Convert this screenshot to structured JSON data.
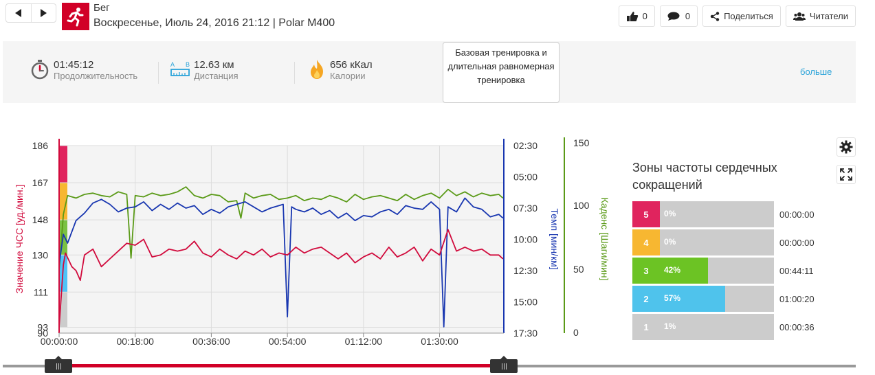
{
  "header": {
    "title": "Бег",
    "subtitle": "Воскресенье, Июль 24, 2016 21:12 | Polar M400",
    "like_count": "0",
    "comment_count": "0",
    "share_label": "Поделиться",
    "readers_label": "Читатели"
  },
  "stats": {
    "duration": {
      "value": "01:45:12",
      "label": "Продолжительность"
    },
    "distance": {
      "value": "12.63 км",
      "label": "Дистанция",
      "icon_a": "A",
      "icon_b": "B"
    },
    "calories": {
      "value": "656 кКал",
      "label": "Калории"
    },
    "training_type": "Базовая тренировка и длительная равномерная тренировка",
    "more_label": "больше"
  },
  "chart_data": {
    "type": "line",
    "x_ticks": [
      "00:00:00",
      "00:18:00",
      "00:36:00",
      "00:54:00",
      "01:12:00",
      "01:30:00"
    ],
    "xlim_minutes": [
      0,
      105.2
    ],
    "hr_axis": {
      "label": "Значение ЧСС [уд./мин.]",
      "ticks": [
        "186",
        "167",
        "148",
        "130",
        "111",
        "93",
        "90"
      ],
      "ylim": [
        90,
        186
      ]
    },
    "pace_axis": {
      "label": "Темп [мин/км]",
      "ticks": [
        "02:30",
        "05:00",
        "07:30",
        "10:00",
        "12:30",
        "15:00",
        "17:30"
      ],
      "ylim_minutes": [
        2.5,
        17.5
      ]
    },
    "cadence_axis": {
      "label": "Каденс [Шаги/мин]",
      "ticks": [
        "150",
        "100",
        "50",
        "0"
      ],
      "ylim": [
        0,
        150
      ]
    },
    "zone_bands": [
      {
        "zone": 5,
        "from": 167,
        "to": 186,
        "color": "#e0245e"
      },
      {
        "zone": 4,
        "from": 148,
        "to": 167,
        "color": "#f7b731"
      },
      {
        "zone": 3,
        "from": 130,
        "to": 148,
        "color": "#7ac143"
      },
      {
        "zone": 2,
        "from": 111,
        "to": 130,
        "color": "#4fc3f7"
      },
      {
        "zone": 1,
        "from": 93,
        "to": 111,
        "color": "#cccccc"
      }
    ],
    "series": [
      {
        "key": "heart-rate",
        "color": "#d10a3c",
        "x": [
          0,
          1,
          1.5,
          3,
          4,
          5,
          6,
          8,
          10,
          12,
          14,
          16,
          18,
          20,
          22,
          24,
          26,
          28,
          30,
          32,
          34,
          36,
          38,
          40,
          42,
          44,
          46,
          48,
          50,
          52,
          54,
          56,
          58,
          60,
          62,
          64,
          66,
          68,
          70,
          72,
          74,
          76,
          78,
          80,
          82,
          84,
          86,
          88,
          90,
          92,
          94,
          96,
          98,
          100,
          102,
          104,
          105
        ],
        "values": [
          93,
          125,
          131,
          124,
          122,
          117,
          130,
          133,
          124,
          128,
          132,
          136,
          135,
          138,
          129,
          130,
          133,
          132,
          133,
          137,
          131,
          129,
          133,
          130,
          128,
          132,
          130,
          133,
          129,
          131,
          130,
          134,
          131,
          133,
          134,
          131,
          128,
          131,
          126,
          129,
          131,
          128,
          134,
          129,
          131,
          134,
          127,
          133,
          130,
          143,
          132,
          134,
          132,
          133,
          130,
          130,
          128
        ]
      },
      {
        "key": "pace",
        "color": "#1836b0",
        "x": [
          0,
          1,
          2,
          4,
          6,
          8,
          10,
          12,
          14,
          16,
          18,
          20,
          22,
          24,
          26,
          28,
          30,
          32,
          34,
          36,
          38,
          40,
          42,
          44,
          46,
          48,
          50,
          52,
          53,
          54,
          55,
          56,
          58,
          60,
          62,
          64,
          66,
          68,
          70,
          72,
          74,
          76,
          78,
          80,
          82,
          84,
          86,
          88,
          90,
          91,
          92,
          94,
          96,
          98,
          100,
          102,
          104,
          105
        ],
        "values": [
          12.0,
          9.6,
          10.3,
          8.5,
          7.9,
          7.1,
          6.8,
          7.2,
          7.8,
          7.5,
          7.4,
          7.0,
          7.7,
          7.2,
          7.6,
          7.1,
          7.5,
          7.3,
          8.0,
          7.6,
          7.9,
          7.4,
          7.2,
          7.0,
          7.4,
          7.8,
          7.5,
          7.3,
          7.2,
          16.2,
          7.4,
          7.6,
          7.8,
          7.5,
          8.0,
          7.7,
          8.3,
          7.9,
          8.5,
          8.1,
          8.2,
          7.8,
          7.6,
          8.0,
          7.3,
          7.5,
          7.6,
          7.0,
          7.6,
          17.0,
          7.4,
          7.8,
          6.7,
          7.4,
          7.6,
          8.2,
          8.0,
          8.3
        ]
      },
      {
        "key": "cadence",
        "color": "#5a9a17",
        "x": [
          0,
          1,
          2,
          4,
          6,
          8,
          10,
          12,
          14,
          16,
          17,
          18,
          20,
          22,
          24,
          26,
          28,
          30,
          32,
          34,
          36,
          38,
          40,
          42,
          43,
          44,
          46,
          48,
          50,
          52,
          54,
          56,
          58,
          60,
          62,
          64,
          66,
          68,
          70,
          72,
          74,
          76,
          78,
          80,
          82,
          84,
          86,
          88,
          90,
          92,
          94,
          96,
          98,
          100,
          102,
          104,
          105
        ],
        "values": [
          50,
          95,
          110,
          108,
          111,
          112,
          110,
          109,
          113,
          111,
          60,
          110,
          109,
          112,
          110,
          111,
          113,
          117,
          110,
          108,
          111,
          110,
          105,
          106,
          92,
          112,
          108,
          110,
          111,
          107,
          108,
          110,
          106,
          108,
          107,
          110,
          108,
          105,
          111,
          107,
          109,
          110,
          108,
          106,
          111,
          107,
          110,
          112,
          108,
          115,
          110,
          113,
          109,
          112,
          110,
          111,
          108
        ]
      }
    ]
  },
  "zones": {
    "title": "Зоны частоты сердечных сокращений",
    "items": [
      {
        "zone": "5",
        "percent": "0%",
        "fraction": 0.0,
        "time": "00:00:00",
        "color": "#e0245e"
      },
      {
        "zone": "4",
        "percent": "0%",
        "fraction": 0.0,
        "time": "00:00:00",
        "color": "#f7b731"
      },
      {
        "zone": "3",
        "percent": "42%",
        "fraction": 0.42,
        "time": "00:44:11",
        "color": "#6cc324"
      },
      {
        "zone": "2",
        "percent": "57%",
        "fraction": 0.57,
        "time": "01:00:20",
        "color": "#4fc3ec"
      },
      {
        "zone": "1",
        "percent": "1%",
        "fraction": 0.01,
        "time": "00:00:36",
        "color": "#cccccc"
      }
    ]
  },
  "range_slider": {
    "start_fraction": 0.0,
    "end_fraction": 1.0
  }
}
